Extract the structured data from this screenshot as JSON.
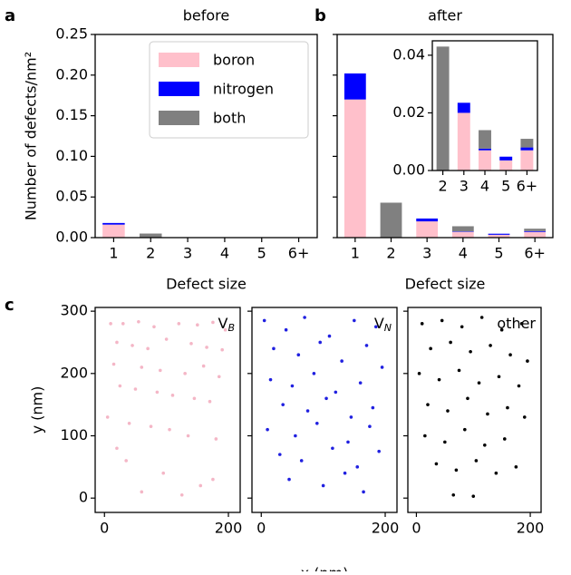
{
  "chart_data": [
    {
      "type": "bar",
      "panel": "a",
      "title": "before",
      "xlabel": "Defect size",
      "ylabel": "Number of defects/nm²",
      "categories": [
        "1",
        "2",
        "3",
        "4",
        "5",
        "6+"
      ],
      "series": [
        {
          "name": "boron",
          "color": "#ffc0cb",
          "values": [
            0.016,
            0,
            0,
            0,
            0,
            0
          ]
        },
        {
          "name": "nitrogen",
          "color": "#0000ff",
          "values": [
            0.002,
            0,
            0,
            0,
            0,
            0
          ]
        },
        {
          "name": "both",
          "color": "#808080",
          "values": [
            0,
            0.005,
            0,
            0,
            0,
            0
          ]
        }
      ],
      "ylim": [
        0,
        0.25
      ],
      "yticks": [
        {
          "value": 0,
          "label": "0.00"
        },
        {
          "value": 0.05,
          "label": "0.05"
        },
        {
          "value": 0.1,
          "label": "0.10"
        },
        {
          "value": 0.15,
          "label": "0.15"
        },
        {
          "value": 0.2,
          "label": "0.20"
        },
        {
          "value": 0.25,
          "label": "0.25"
        }
      ],
      "legend": "upper right"
    },
    {
      "type": "bar",
      "panel": "b",
      "title": "after",
      "xlabel": "Defect size",
      "categories": [
        "1",
        "2",
        "3",
        "4",
        "5",
        "6+"
      ],
      "series": [
        {
          "color": "#ffc0cb",
          "values": [
            0.17,
            0,
            0.02,
            0.007,
            0.0035,
            0.007
          ]
        },
        {
          "color": "#0000ff",
          "values": [
            0.032,
            0,
            0.0035,
            0.0006,
            0.0013,
            0.001
          ]
        },
        {
          "color": "#808080",
          "values": [
            0,
            0.043,
            0,
            0.0064,
            0,
            0.003
          ]
        }
      ],
      "ylim": [
        0,
        0.25
      ],
      "yticks": [
        0,
        0.05,
        0.1,
        0.15,
        0.2,
        0.25
      ]
    },
    {
      "type": "bar",
      "inset": true,
      "categories": [
        "2",
        "3",
        "4",
        "5",
        "6+"
      ],
      "series": [
        {
          "color": "#ffc0cb",
          "values": [
            0,
            0.02,
            0.007,
            0.0035,
            0.007
          ]
        },
        {
          "color": "#0000ff",
          "values": [
            0,
            0.0035,
            0.0006,
            0.0013,
            0.001
          ]
        },
        {
          "color": "#808080",
          "values": [
            0.043,
            0,
            0.0064,
            0,
            0.003
          ]
        }
      ],
      "ylim": [
        0,
        0.045
      ],
      "yticks": [
        {
          "value": 0,
          "label": "0.00"
        },
        {
          "value": 0.02,
          "label": "0.02"
        },
        {
          "value": 0.04,
          "label": "0.04"
        }
      ]
    },
    {
      "type": "scatter",
      "panel": "c",
      "title": "V",
      "title_sub": "B",
      "ylabel": "y (nm)",
      "color": "#f4b6c6",
      "x": [
        10,
        30,
        55,
        80,
        120,
        150,
        175,
        195,
        20,
        45,
        70,
        100,
        140,
        165,
        190,
        15,
        60,
        90,
        130,
        160,
        185,
        25,
        50,
        85,
        110,
        145,
        170,
        5,
        40,
        75,
        105,
        135,
        180,
        35,
        95,
        155,
        60,
        125,
        175,
        20
      ],
      "y": [
        280,
        280,
        283,
        275,
        280,
        278,
        282,
        270,
        250,
        245,
        240,
        255,
        248,
        242,
        238,
        215,
        210,
        205,
        200,
        212,
        195,
        180,
        175,
        170,
        165,
        160,
        155,
        130,
        120,
        115,
        110,
        100,
        95,
        60,
        40,
        20,
        10,
        5,
        30,
        80
      ],
      "xlim": [
        -15,
        219
      ],
      "ylim": [
        -23,
        306
      ],
      "xticks": [
        0,
        200
      ],
      "yticks": [
        0,
        100,
        200,
        300
      ]
    },
    {
      "type": "scatter",
      "title": "V",
      "title_sub": "N",
      "xlabel": "x (nm)",
      "color": "#2020e0",
      "x": [
        5,
        40,
        70,
        110,
        150,
        185,
        20,
        60,
        95,
        130,
        170,
        195,
        15,
        50,
        85,
        120,
        160,
        35,
        75,
        105,
        145,
        180,
        10,
        55,
        90,
        140,
        175,
        30,
        65,
        115,
        155,
        190,
        45,
        100,
        135,
        165
      ],
      "y": [
        285,
        270,
        290,
        260,
        285,
        275,
        240,
        230,
        250,
        220,
        245,
        210,
        190,
        180,
        200,
        170,
        185,
        150,
        140,
        160,
        130,
        145,
        110,
        100,
        120,
        90,
        115,
        70,
        60,
        80,
        50,
        75,
        30,
        20,
        40,
        10
      ],
      "xlim": [
        -15,
        219
      ],
      "ylim": [
        -23,
        306
      ],
      "xticks": [
        0,
        200
      ],
      "yticks": [
        0,
        100,
        200,
        300
      ]
    },
    {
      "type": "scatter",
      "title": "other",
      "color": "#000000",
      "x": [
        10,
        45,
        80,
        115,
        150,
        185,
        25,
        60,
        95,
        130,
        165,
        195,
        5,
        40,
        75,
        110,
        145,
        180,
        20,
        55,
        90,
        125,
        160,
        190,
        15,
        50,
        85,
        120,
        155,
        35,
        70,
        105,
        140,
        175,
        65,
        100
      ],
      "y": [
        280,
        285,
        275,
        290,
        270,
        280,
        240,
        250,
        235,
        245,
        230,
        220,
        200,
        190,
        205,
        185,
        195,
        180,
        150,
        140,
        160,
        135,
        145,
        130,
        100,
        90,
        110,
        85,
        95,
        55,
        45,
        60,
        40,
        50,
        5,
        3
      ],
      "xlim": [
        -15,
        219
      ],
      "ylim": [
        -23,
        306
      ],
      "xticks": [
        0,
        200
      ],
      "yticks": [
        0,
        100,
        200,
        300
      ]
    }
  ]
}
